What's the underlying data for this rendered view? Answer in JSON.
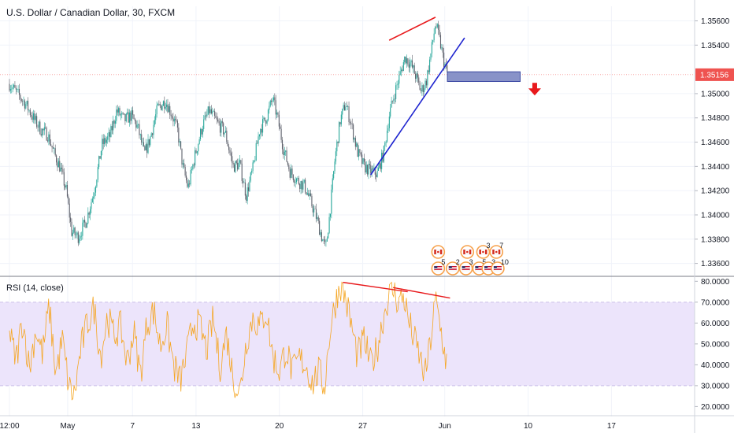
{
  "chart_data": [
    {
      "type": "candlestick",
      "title": "U.S. Dollar / Canadian Dollar, 30, FXCM",
      "y_tick_labels": [
        "1.35600",
        "1.35400",
        "1.35000",
        "1.34800",
        "1.34600",
        "1.34400",
        "1.34200",
        "1.34000",
        "1.33800",
        "1.33600"
      ],
      "ylim": [
        1.335,
        1.3572
      ],
      "x_tick_labels": [
        "12:00",
        "May",
        "7",
        "13",
        "20",
        "27",
        "Jun",
        "10",
        "17"
      ],
      "last_price": "1.35156",
      "price_path": [
        {
          "d": 0.0,
          "p": 1.3508
        },
        {
          "d": 0.6,
          "p": 1.35
        },
        {
          "d": 1.2,
          "p": 1.3492
        },
        {
          "d": 1.9,
          "p": 1.3478
        },
        {
          "d": 2.4,
          "p": 1.347
        },
        {
          "d": 2.9,
          "p": 1.3466
        },
        {
          "d": 3.4,
          "p": 1.345
        },
        {
          "d": 3.8,
          "p": 1.344
        },
        {
          "d": 4.3,
          "p": 1.342
        },
        {
          "d": 4.7,
          "p": 1.3386
        },
        {
          "d": 5.2,
          "p": 1.3382
        },
        {
          "d": 5.8,
          "p": 1.3395
        },
        {
          "d": 6.4,
          "p": 1.342
        },
        {
          "d": 7.0,
          "p": 1.3458
        },
        {
          "d": 7.6,
          "p": 1.3465
        },
        {
          "d": 8.1,
          "p": 1.3486
        },
        {
          "d": 8.7,
          "p": 1.3478
        },
        {
          "d": 9.2,
          "p": 1.3482
        },
        {
          "d": 9.7,
          "p": 1.3472
        },
        {
          "d": 10.2,
          "p": 1.345
        },
        {
          "d": 10.6,
          "p": 1.3462
        },
        {
          "d": 11.2,
          "p": 1.3488
        },
        {
          "d": 11.8,
          "p": 1.3494
        },
        {
          "d": 12.3,
          "p": 1.3482
        },
        {
          "d": 12.7,
          "p": 1.347
        },
        {
          "d": 13.1,
          "p": 1.344
        },
        {
          "d": 13.5,
          "p": 1.3422
        },
        {
          "d": 14.0,
          "p": 1.3448
        },
        {
          "d": 14.6,
          "p": 1.3474
        },
        {
          "d": 15.1,
          "p": 1.3486
        },
        {
          "d": 15.7,
          "p": 1.3476
        },
        {
          "d": 16.3,
          "p": 1.3468
        },
        {
          "d": 16.9,
          "p": 1.344
        },
        {
          "d": 17.4,
          "p": 1.3442
        },
        {
          "d": 17.9,
          "p": 1.3416
        },
        {
          "d": 18.4,
          "p": 1.3438
        },
        {
          "d": 18.9,
          "p": 1.347
        },
        {
          "d": 19.4,
          "p": 1.348
        },
        {
          "d": 19.9,
          "p": 1.3496
        },
        {
          "d": 20.3,
          "p": 1.3478
        },
        {
          "d": 20.7,
          "p": 1.3455
        },
        {
          "d": 21.2,
          "p": 1.3436
        },
        {
          "d": 21.8,
          "p": 1.3428
        },
        {
          "d": 22.3,
          "p": 1.3424
        },
        {
          "d": 22.8,
          "p": 1.341
        },
        {
          "d": 23.2,
          "p": 1.3398
        },
        {
          "d": 23.6,
          "p": 1.3382
        },
        {
          "d": 23.9,
          "p": 1.3372
        },
        {
          "d": 24.2,
          "p": 1.34
        },
        {
          "d": 24.6,
          "p": 1.3446
        },
        {
          "d": 25.0,
          "p": 1.3478
        },
        {
          "d": 25.4,
          "p": 1.3492
        },
        {
          "d": 25.8,
          "p": 1.3476
        },
        {
          "d": 26.3,
          "p": 1.3452
        },
        {
          "d": 26.8,
          "p": 1.344
        },
        {
          "d": 27.3,
          "p": 1.3436
        },
        {
          "d": 27.8,
          "p": 1.3434
        },
        {
          "d": 28.3,
          "p": 1.3452
        },
        {
          "d": 28.7,
          "p": 1.3482
        },
        {
          "d": 29.1,
          "p": 1.35
        },
        {
          "d": 29.5,
          "p": 1.3515
        },
        {
          "d": 29.9,
          "p": 1.353
        },
        {
          "d": 30.3,
          "p": 1.3525
        },
        {
          "d": 30.7,
          "p": 1.3515
        },
        {
          "d": 31.1,
          "p": 1.3502
        },
        {
          "d": 31.5,
          "p": 1.351
        },
        {
          "d": 31.9,
          "p": 1.3536
        },
        {
          "d": 32.2,
          "p": 1.3558
        },
        {
          "d": 32.5,
          "p": 1.3545
        },
        {
          "d": 32.8,
          "p": 1.3528
        },
        {
          "d": 33.1,
          "p": 1.3516
        }
      ]
    },
    {
      "type": "line",
      "title": "RSI (14, close)",
      "y_tick_labels": [
        "80.0000",
        "70.0000",
        "60.0000",
        "50.0000",
        "40.0000",
        "30.0000",
        "20.0000"
      ],
      "ylim": [
        16,
        82
      ],
      "band": [
        30,
        70
      ],
      "rsi_path": [
        {
          "d": 0.0,
          "r": 55
        },
        {
          "d": 0.5,
          "r": 42
        },
        {
          "d": 1.0,
          "r": 62
        },
        {
          "d": 1.5,
          "r": 38
        },
        {
          "d": 2.0,
          "r": 57
        },
        {
          "d": 2.5,
          "r": 45
        },
        {
          "d": 3.0,
          "r": 68
        },
        {
          "d": 3.5,
          "r": 36
        },
        {
          "d": 4.0,
          "r": 52
        },
        {
          "d": 4.5,
          "r": 29
        },
        {
          "d": 4.9,
          "r": 25
        },
        {
          "d": 5.4,
          "r": 48
        },
        {
          "d": 5.9,
          "r": 60
        },
        {
          "d": 6.4,
          "r": 67
        },
        {
          "d": 6.9,
          "r": 44
        },
        {
          "d": 7.4,
          "r": 63
        },
        {
          "d": 7.9,
          "r": 54
        },
        {
          "d": 8.4,
          "r": 58
        },
        {
          "d": 8.9,
          "r": 41
        },
        {
          "d": 9.4,
          "r": 56
        },
        {
          "d": 9.9,
          "r": 35
        },
        {
          "d": 10.4,
          "r": 60
        },
        {
          "d": 10.9,
          "r": 66
        },
        {
          "d": 11.4,
          "r": 49
        },
        {
          "d": 11.9,
          "r": 59
        },
        {
          "d": 12.4,
          "r": 40
        },
        {
          "d": 12.9,
          "r": 32
        },
        {
          "d": 13.4,
          "r": 45
        },
        {
          "d": 13.9,
          "r": 61
        },
        {
          "d": 14.4,
          "r": 58
        },
        {
          "d": 14.9,
          "r": 47
        },
        {
          "d": 15.4,
          "r": 62
        },
        {
          "d": 15.9,
          "r": 39
        },
        {
          "d": 16.4,
          "r": 55
        },
        {
          "d": 16.9,
          "r": 34
        },
        {
          "d": 17.4,
          "r": 26
        },
        {
          "d": 17.9,
          "r": 51
        },
        {
          "d": 18.4,
          "r": 63
        },
        {
          "d": 18.9,
          "r": 58
        },
        {
          "d": 19.4,
          "r": 66
        },
        {
          "d": 19.9,
          "r": 44
        },
        {
          "d": 20.4,
          "r": 37
        },
        {
          "d": 20.9,
          "r": 48
        },
        {
          "d": 21.4,
          "r": 36
        },
        {
          "d": 21.9,
          "r": 43
        },
        {
          "d": 22.4,
          "r": 40
        },
        {
          "d": 22.9,
          "r": 31
        },
        {
          "d": 23.4,
          "r": 37
        },
        {
          "d": 23.8,
          "r": 29
        },
        {
          "d": 24.2,
          "r": 55
        },
        {
          "d": 24.6,
          "r": 69
        },
        {
          "d": 25.0,
          "r": 79
        },
        {
          "d": 25.4,
          "r": 72
        },
        {
          "d": 25.8,
          "r": 60
        },
        {
          "d": 26.3,
          "r": 44
        },
        {
          "d": 26.8,
          "r": 52
        },
        {
          "d": 27.3,
          "r": 40
        },
        {
          "d": 27.8,
          "r": 48
        },
        {
          "d": 28.2,
          "r": 61
        },
        {
          "d": 28.6,
          "r": 72
        },
        {
          "d": 29.0,
          "r": 76
        },
        {
          "d": 29.4,
          "r": 70
        },
        {
          "d": 29.8,
          "r": 73
        },
        {
          "d": 30.2,
          "r": 60
        },
        {
          "d": 30.6,
          "r": 52
        },
        {
          "d": 31.0,
          "r": 44
        },
        {
          "d": 31.4,
          "r": 34
        },
        {
          "d": 31.8,
          "r": 50
        },
        {
          "d": 32.2,
          "r": 71
        },
        {
          "d": 32.6,
          "r": 57
        },
        {
          "d": 32.9,
          "r": 45
        },
        {
          "d": 33.1,
          "r": 40
        }
      ]
    }
  ],
  "annotations": {
    "resistance_line": [
      {
        "d": 28.7,
        "p": 1.3544
      },
      {
        "d": 32.2,
        "p": 1.3563
      }
    ],
    "support_line": [
      {
        "d": 27.3,
        "p": 1.3433
      },
      {
        "d": 34.4,
        "p": 1.3546
      }
    ],
    "zone": {
      "d0": 33.1,
      "d1": 38.6,
      "p0": 1.351,
      "p1": 1.3518
    },
    "arrow": {
      "d": 39.7,
      "p": 1.3503
    },
    "rsi_divergence_lines": [
      [
        {
          "d": 25.2,
          "r": 79.5
        },
        {
          "d": 30.1,
          "r": 75
        }
      ],
      [
        {
          "d": 29.0,
          "r": 77
        },
        {
          "d": 33.3,
          "r": 72
        }
      ]
    ]
  },
  "events": {
    "upper_row": [
      {
        "d": 32.4,
        "label": ""
      },
      {
        "d": 34.6,
        "label": ""
      },
      {
        "d": 35.8,
        "label": "3"
      },
      {
        "d": 36.8,
        "label": "7"
      }
    ],
    "lower_row": [
      {
        "d": 32.4,
        "label": "5"
      },
      {
        "d": 33.5,
        "label": "2"
      },
      {
        "d": 34.5,
        "label": "3"
      },
      {
        "d": 35.5,
        "label": "5"
      },
      {
        "d": 36.2,
        "label": "3"
      },
      {
        "d": 36.9,
        "label": "10"
      }
    ]
  },
  "colors": {
    "up": "#26a69a",
    "down": "#5d606b",
    "rsi_line": "#f5a623",
    "rsi_band": "#ece4fb",
    "resistance": "#e8191c",
    "support": "#1e24cf",
    "zone_fill": "#8892c8",
    "zone_stroke": "#3d4aa3",
    "price_badge": "#ef5350",
    "grid": "#f0f3fa"
  }
}
